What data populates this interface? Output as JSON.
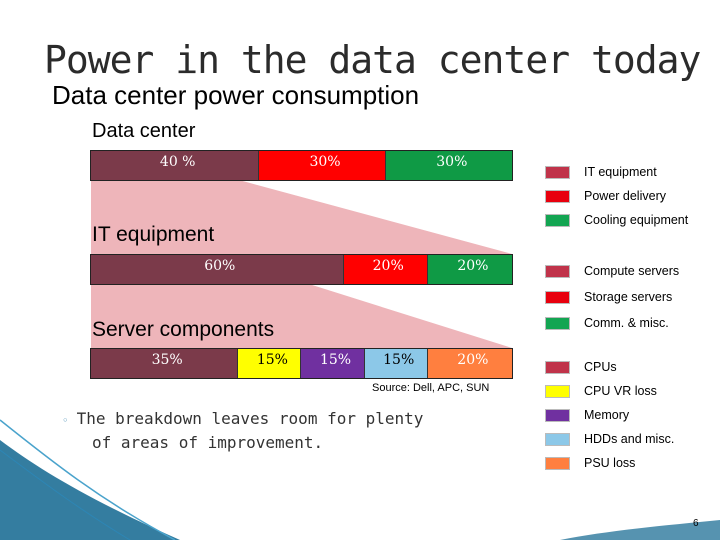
{
  "slide": {
    "title": "Power in the data center today",
    "subtitle": "Data center power consumption",
    "page_number": "6"
  },
  "sections": {
    "data_center": "Data center",
    "it_equipment": "IT equipment",
    "server_components": "Server components"
  },
  "bars": {
    "data_center": [
      {
        "label": "40 %",
        "value": 40,
        "color": "#7b3a4a"
      },
      {
        "label": "30%",
        "value": 30,
        "color": "#ff0000"
      },
      {
        "label": "30%",
        "value": 30,
        "color": "#0f9a45"
      }
    ],
    "it_equipment": [
      {
        "label": "60%",
        "value": 60,
        "color": "#7b3a4a"
      },
      {
        "label": "20%",
        "value": 20,
        "color": "#ff0000"
      },
      {
        "label": "20%",
        "value": 20,
        "color": "#0f9a45"
      }
    ],
    "server_components": [
      {
        "label": "35%",
        "value": 35,
        "color": "#7b3a4a"
      },
      {
        "label": "15%",
        "value": 15,
        "color": "#ffff00"
      },
      {
        "label": "15%",
        "value": 15,
        "color": "#7030a0"
      },
      {
        "label": "15%",
        "value": 15,
        "color": "#8cc8e8"
      },
      {
        "label": "20%",
        "value": 20,
        "color": "#ff7f3f"
      }
    ]
  },
  "legends": {
    "data_center": [
      {
        "label": "IT equipment",
        "color": "#c0334a"
      },
      {
        "label": "Power delivery",
        "color": "#e8000e"
      },
      {
        "label": "Cooling equipment",
        "color": "#13a552"
      }
    ],
    "it_equipment": [
      {
        "label": "Compute servers",
        "color": "#c0334a"
      },
      {
        "label": "Storage servers",
        "color": "#e8000e"
      },
      {
        "label": "Comm. & misc.",
        "color": "#13a552"
      }
    ],
    "server_components": [
      {
        "label": "CPUs",
        "color": "#c0334a"
      },
      {
        "label": "CPU VR loss",
        "color": "#ffff00"
      },
      {
        "label": "Memory",
        "color": "#7030a0"
      },
      {
        "label": "HDDs and misc.",
        "color": "#8cc8e8"
      },
      {
        "label": "PSU loss",
        "color": "#ff7f3f"
      }
    ]
  },
  "source": "Source: Dell, APC, SUN",
  "bullet": {
    "line1": "The breakdown leaves room for plenty",
    "line2": "of areas of improvement."
  },
  "colors": {
    "connector": "#eeb5ba",
    "decoration": "#1e6f96"
  }
}
